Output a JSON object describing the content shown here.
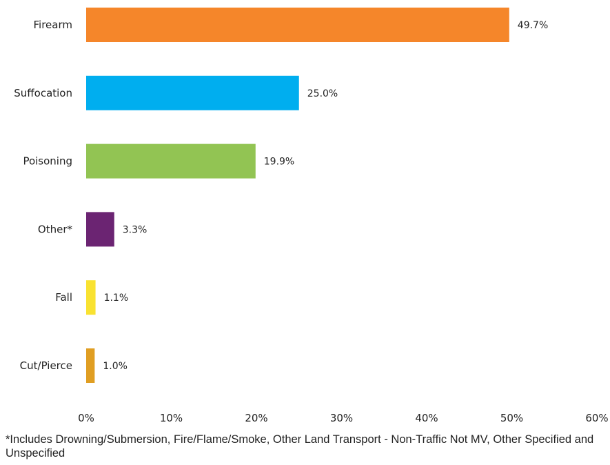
{
  "chart_data": {
    "type": "bar",
    "orientation": "horizontal",
    "categories": [
      "Firearm",
      "Suffocation",
      "Poisoning",
      "Other*",
      "Fall",
      "Cut/Pierce"
    ],
    "values": [
      49.7,
      25.0,
      19.9,
      3.3,
      1.1,
      1.0
    ],
    "value_labels": [
      "49.7%",
      "25.0%",
      "19.9%",
      "3.3%",
      "1.1%",
      "1.0%"
    ],
    "colors": [
      "#F5862A",
      "#00AEEF",
      "#92C453",
      "#6B2472",
      "#F9E231",
      "#E09E22"
    ],
    "xlim": [
      0,
      60
    ],
    "xticks": [
      0,
      10,
      20,
      30,
      40,
      50,
      60
    ],
    "xtick_labels": [
      "0%",
      "10%",
      "20%",
      "30%",
      "40%",
      "50%",
      "60%"
    ],
    "grid": false,
    "legend": "none"
  },
  "footnote": "*Includes Drowning/Submersion, Fire/Flame/Smoke, Other Land Transport - Non-Traffic Not MV, Other Specified and Unspecified"
}
